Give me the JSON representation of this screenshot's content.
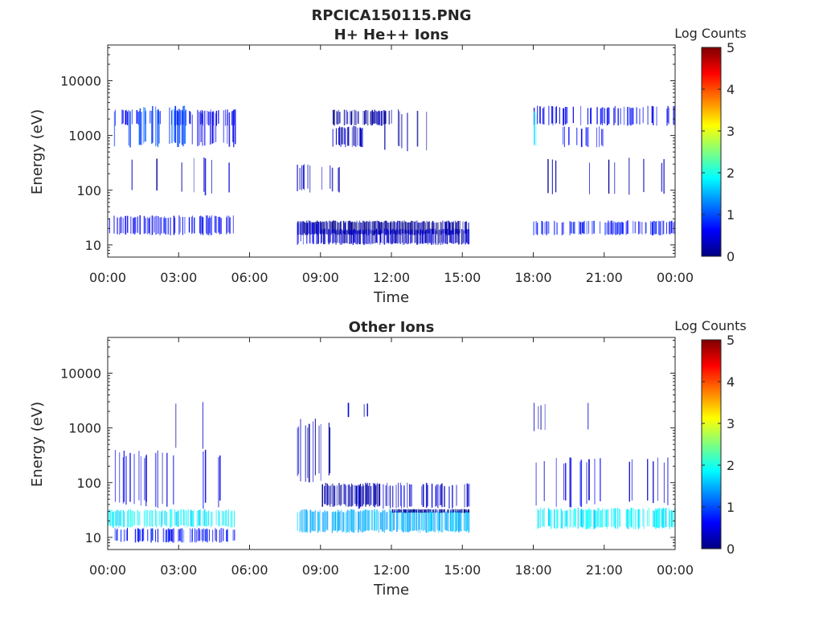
{
  "figure_title": "RPCICA150115.PNG",
  "colors": {
    "axis": "#262626",
    "colormap": [
      "#00007f",
      "#0000ff",
      "#007fff",
      "#00ffff",
      "#7fff7f",
      "#ffff00",
      "#ff7f00",
      "#ff0000",
      "#7f0000"
    ]
  },
  "chart_data": [
    {
      "type": "heatmap",
      "title": "H+ He++ Ions",
      "xlabel": "Time",
      "ylabel": "Energy (eV)",
      "xlim_hours": [
        0,
        24
      ],
      "x_ticks": [
        "00:00",
        "03:00",
        "06:00",
        "09:00",
        "12:00",
        "15:00",
        "18:00",
        "21:00",
        "00:00"
      ],
      "y_scale": "log",
      "ylim": [
        6,
        45000
      ],
      "y_ticks": [
        "10",
        "100",
        "1000",
        "10000"
      ],
      "colorbar": {
        "label": "Log Counts",
        "range": [
          0,
          5
        ],
        "ticks": [
          "0",
          "1",
          "2",
          "3",
          "4",
          "5"
        ]
      },
      "data_gaps_hours": [
        [
          5.4,
          8.0
        ],
        [
          15.3,
          18.0
        ]
      ],
      "features": [
        {
          "t": [
            0.0,
            5.4
          ],
          "energy": [
            15,
            35
          ],
          "log_counts": 0.6,
          "density": 0.55
        },
        {
          "t": [
            0.0,
            5.4
          ],
          "energy": [
            1500,
            3000
          ],
          "log_counts": 0.6,
          "density": 0.35
        },
        {
          "t": [
            1.3,
            3.5
          ],
          "energy": [
            600,
            3500
          ],
          "log_counts": 1.0,
          "density": 0.45
        },
        {
          "t": [
            0.2,
            1.0
          ],
          "energy": [
            600,
            3000
          ],
          "log_counts": 0.8,
          "density": 0.3
        },
        {
          "t": [
            3.5,
            5.4
          ],
          "energy": [
            600,
            3000
          ],
          "log_counts": 0.5,
          "density": 0.3
        },
        {
          "t": [
            1.0,
            5.4
          ],
          "energy": [
            80,
            400
          ],
          "log_counts": 0.3,
          "density": 0.04
        },
        {
          "t": [
            8.0,
            15.3
          ],
          "energy": [
            15,
            28
          ],
          "log_counts": 0.1,
          "density": 0.95
        },
        {
          "t": [
            8.0,
            9.0
          ],
          "energy": [
            10,
            28
          ],
          "log_counts": 0.5,
          "density": 0.6
        },
        {
          "t": [
            9.0,
            15.3
          ],
          "energy": [
            10,
            20
          ],
          "log_counts": 0.3,
          "density": 0.9
        },
        {
          "t": [
            8.0,
            9.8
          ],
          "energy": [
            90,
            300
          ],
          "log_counts": 0.3,
          "density": 0.45
        },
        {
          "t": [
            9.5,
            12.0
          ],
          "energy": [
            1500,
            3000
          ],
          "log_counts": 0.2,
          "density": 0.7
        },
        {
          "t": [
            9.5,
            10.8
          ],
          "energy": [
            600,
            1500
          ],
          "log_counts": 0.3,
          "density": 0.6
        },
        {
          "t": [
            11.5,
            13.5
          ],
          "energy": [
            500,
            3000
          ],
          "log_counts": 0.2,
          "density": 0.2
        },
        {
          "t": [
            18.0,
            24.0
          ],
          "energy": [
            15,
            28
          ],
          "log_counts": 0.7,
          "density": 0.55
        },
        {
          "t": [
            18.0,
            24.0
          ],
          "energy": [
            1500,
            3500
          ],
          "log_counts": 0.6,
          "density": 0.4
        },
        {
          "t": [
            18.0,
            18.2
          ],
          "energy": [
            600,
            3000
          ],
          "log_counts": 1.8,
          "density": 0.7
        },
        {
          "t": [
            19.0,
            21.0
          ],
          "energy": [
            600,
            1500
          ],
          "log_counts": 0.6,
          "density": 0.35
        },
        {
          "t": [
            18.5,
            24.0
          ],
          "energy": [
            80,
            400
          ],
          "log_counts": 0.3,
          "density": 0.05
        }
      ]
    },
    {
      "type": "heatmap",
      "title": "Other Ions",
      "xlabel": "Time",
      "ylabel": "Energy (eV)",
      "xlim_hours": [
        0,
        24
      ],
      "x_ticks": [
        "00:00",
        "03:00",
        "06:00",
        "09:00",
        "12:00",
        "15:00",
        "18:00",
        "21:00",
        "00:00"
      ],
      "y_scale": "log",
      "ylim": [
        6,
        45000
      ],
      "y_ticks": [
        "10",
        "100",
        "1000",
        "10000"
      ],
      "colorbar": {
        "label": "Log Counts",
        "range": [
          0,
          5
        ],
        "ticks": [
          "0",
          "1",
          "2",
          "3",
          "4",
          "5"
        ]
      },
      "data_gaps_hours": [
        [
          5.4,
          8.0
        ],
        [
          15.3,
          18.0
        ]
      ],
      "features": [
        {
          "t": [
            0.0,
            5.4
          ],
          "energy": [
            15,
            33
          ],
          "log_counts": 1.8,
          "density": 0.65
        },
        {
          "t": [
            0.0,
            5.4
          ],
          "energy": [
            8,
            15
          ],
          "log_counts": 0.7,
          "density": 0.5
        },
        {
          "t": [
            0.0,
            5.4
          ],
          "energy": [
            33,
            400
          ],
          "log_counts": 0.5,
          "density": 0.2
        },
        {
          "t": [
            0.0,
            5.4
          ],
          "energy": [
            400,
            3000
          ],
          "log_counts": 0.3,
          "density": 0.05
        },
        {
          "t": [
            8.0,
            15.3
          ],
          "energy": [
            12,
            33
          ],
          "log_counts": 1.5,
          "density": 0.85
        },
        {
          "t": [
            9.0,
            11.5
          ],
          "energy": [
            35,
            100
          ],
          "log_counts": 0.2,
          "density": 0.85
        },
        {
          "t": [
            8.0,
            9.5
          ],
          "energy": [
            100,
            1500
          ],
          "log_counts": 0.3,
          "density": 0.35
        },
        {
          "t": [
            10.0,
            11.3
          ],
          "energy": [
            1500,
            3000
          ],
          "log_counts": 0.3,
          "density": 0.1
        },
        {
          "t": [
            12.0,
            15.3
          ],
          "energy": [
            28,
            33
          ],
          "log_counts": 0.1,
          "density": 0.9
        },
        {
          "t": [
            10.5,
            15.3
          ],
          "energy": [
            33,
            100
          ],
          "log_counts": 0.4,
          "density": 0.3
        },
        {
          "t": [
            18.0,
            24.0
          ],
          "energy": [
            14,
            35
          ],
          "log_counts": 1.8,
          "density": 0.65
        },
        {
          "t": [
            18.0,
            24.0
          ],
          "energy": [
            35,
            300
          ],
          "log_counts": 0.5,
          "density": 0.22
        },
        {
          "t": [
            18.0,
            24.0
          ],
          "energy": [
            800,
            3000
          ],
          "log_counts": 0.3,
          "density": 0.05
        }
      ]
    }
  ]
}
